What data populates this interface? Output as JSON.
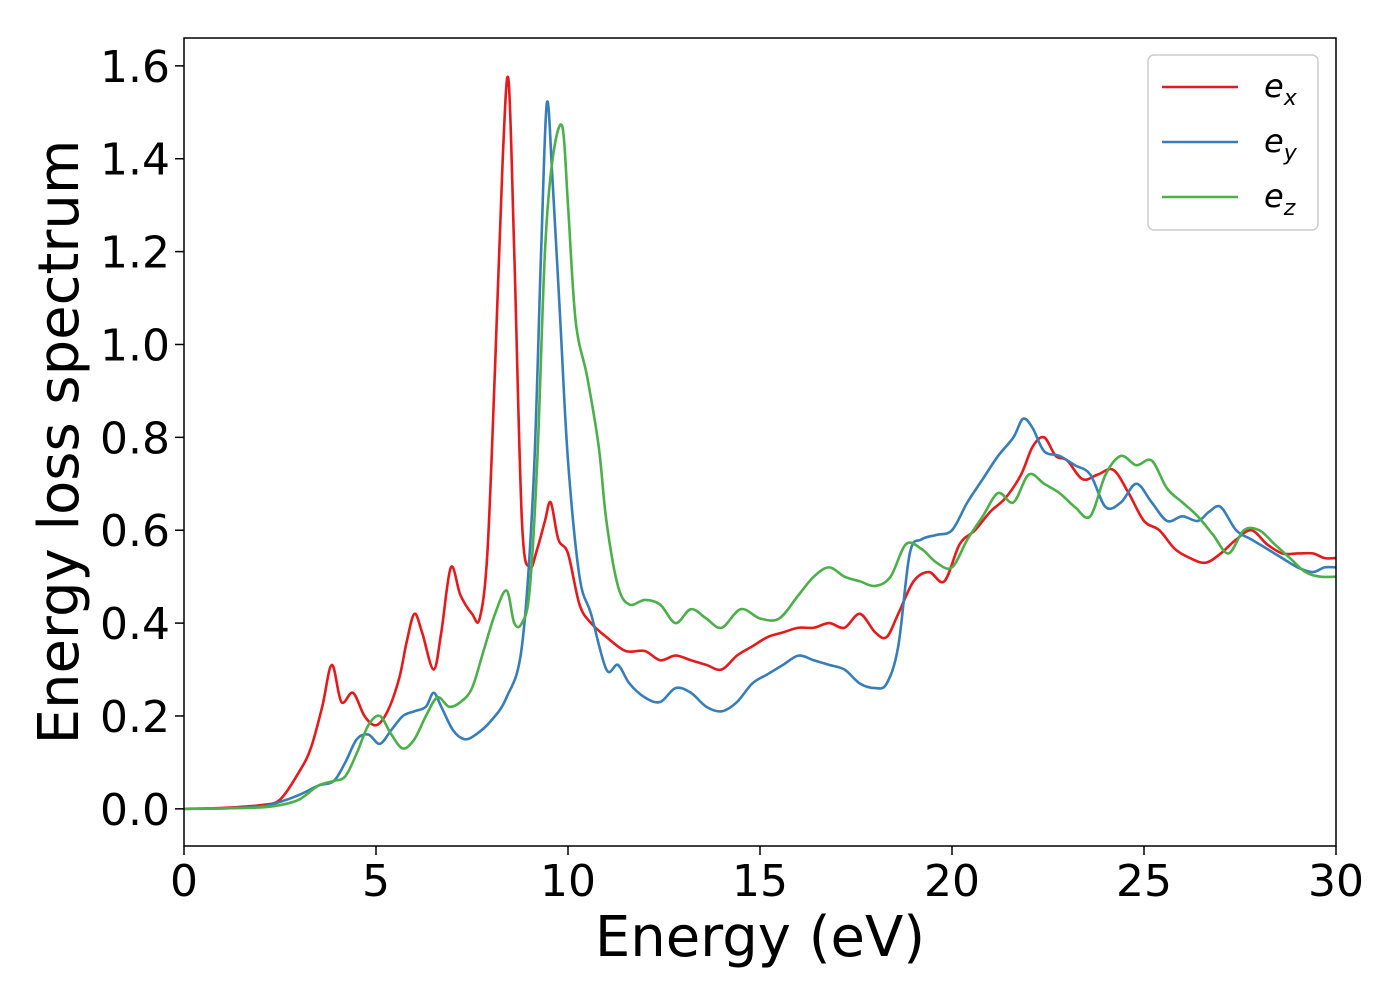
{
  "chart_data": {
    "type": "line",
    "title": "",
    "xlabel": "Energy (eV)",
    "ylabel": "Energy loss spectrum",
    "xlim": [
      0,
      30
    ],
    "ylim": [
      -0.08,
      1.66
    ],
    "xticks": [
      0,
      5,
      10,
      15,
      20,
      25,
      30
    ],
    "yticks": [
      0.0,
      0.2,
      0.4,
      0.6,
      0.8,
      1.0,
      1.2,
      1.4,
      1.6
    ],
    "grid": false,
    "legend_position": "top-right",
    "series": [
      {
        "name": "e_x",
        "label_base": "e",
        "label_sub": "x",
        "color": "#e41a1c",
        "x": [
          0,
          1,
          2,
          2.5,
          3,
          3.3,
          3.6,
          3.85,
          4.1,
          4.4,
          4.7,
          5.0,
          5.3,
          5.6,
          5.8,
          6.0,
          6.2,
          6.5,
          6.7,
          6.95,
          7.2,
          7.5,
          7.7,
          7.9,
          8.1,
          8.3,
          8.45,
          8.6,
          8.8,
          9.0,
          9.2,
          9.4,
          9.55,
          9.75,
          10.0,
          10.3,
          10.6,
          11.0,
          11.5,
          12.0,
          12.4,
          12.8,
          13.2,
          13.6,
          14.0,
          14.4,
          14.8,
          15.2,
          15.6,
          16.0,
          16.4,
          16.8,
          17.2,
          17.6,
          18.0,
          18.3,
          18.6,
          19.0,
          19.4,
          19.8,
          20.2,
          20.6,
          21.0,
          21.4,
          21.8,
          22.1,
          22.4,
          22.7,
          23.0,
          23.4,
          23.8,
          24.2,
          24.6,
          25.0,
          25.4,
          25.8,
          26.2,
          26.6,
          27.0,
          27.4,
          27.8,
          28.2,
          28.6,
          29.0,
          29.4,
          29.7,
          30.0
        ],
        "values": [
          0.0,
          0.002,
          0.008,
          0.02,
          0.08,
          0.13,
          0.22,
          0.31,
          0.23,
          0.25,
          0.2,
          0.18,
          0.21,
          0.28,
          0.36,
          0.42,
          0.38,
          0.3,
          0.38,
          0.52,
          0.46,
          0.42,
          0.41,
          0.55,
          0.95,
          1.4,
          1.57,
          1.2,
          0.62,
          0.52,
          0.56,
          0.62,
          0.66,
          0.58,
          0.55,
          0.44,
          0.4,
          0.37,
          0.34,
          0.34,
          0.32,
          0.33,
          0.32,
          0.31,
          0.3,
          0.33,
          0.35,
          0.37,
          0.38,
          0.39,
          0.39,
          0.4,
          0.39,
          0.42,
          0.38,
          0.37,
          0.42,
          0.49,
          0.51,
          0.49,
          0.57,
          0.6,
          0.64,
          0.67,
          0.72,
          0.78,
          0.8,
          0.76,
          0.75,
          0.71,
          0.72,
          0.73,
          0.68,
          0.62,
          0.6,
          0.56,
          0.54,
          0.53,
          0.55,
          0.58,
          0.6,
          0.57,
          0.55,
          0.55,
          0.55,
          0.54,
          0.54
        ]
      },
      {
        "name": "e_y",
        "label_base": "e",
        "label_sub": "y",
        "color": "#377eb8",
        "x": [
          0,
          1,
          2,
          2.5,
          3,
          3.5,
          3.9,
          4.2,
          4.5,
          4.8,
          5.1,
          5.4,
          5.7,
          6.0,
          6.3,
          6.5,
          6.7,
          7.0,
          7.3,
          7.6,
          8.0,
          8.4,
          8.8,
          9.1,
          9.3,
          9.45,
          9.6,
          9.8,
          10.0,
          10.3,
          10.6,
          11.0,
          11.3,
          11.6,
          12.0,
          12.4,
          12.8,
          13.2,
          13.6,
          14.0,
          14.4,
          14.8,
          15.2,
          15.6,
          16.0,
          16.4,
          16.8,
          17.2,
          17.6,
          18.0,
          18.3,
          18.6,
          18.9,
          19.2,
          19.6,
          20.0,
          20.4,
          20.8,
          21.2,
          21.6,
          21.85,
          22.1,
          22.4,
          22.8,
          23.2,
          23.6,
          24.0,
          24.4,
          24.8,
          25.2,
          25.6,
          26.0,
          26.4,
          26.7,
          27.0,
          27.4,
          27.8,
          28.2,
          28.6,
          29.0,
          29.4,
          29.7,
          30.0
        ],
        "values": [
          0.0,
          0.001,
          0.005,
          0.015,
          0.03,
          0.05,
          0.06,
          0.1,
          0.15,
          0.16,
          0.14,
          0.17,
          0.2,
          0.21,
          0.22,
          0.25,
          0.22,
          0.17,
          0.15,
          0.16,
          0.19,
          0.24,
          0.35,
          0.7,
          1.2,
          1.52,
          1.35,
          1.05,
          0.75,
          0.5,
          0.42,
          0.3,
          0.31,
          0.27,
          0.24,
          0.23,
          0.26,
          0.25,
          0.22,
          0.21,
          0.23,
          0.27,
          0.29,
          0.31,
          0.33,
          0.32,
          0.31,
          0.3,
          0.27,
          0.26,
          0.27,
          0.35,
          0.55,
          0.58,
          0.59,
          0.6,
          0.66,
          0.71,
          0.76,
          0.8,
          0.84,
          0.82,
          0.77,
          0.76,
          0.74,
          0.72,
          0.65,
          0.66,
          0.7,
          0.66,
          0.62,
          0.63,
          0.62,
          0.64,
          0.65,
          0.6,
          0.58,
          0.56,
          0.54,
          0.52,
          0.51,
          0.52,
          0.52
        ]
      },
      {
        "name": "e_z",
        "label_base": "e",
        "label_sub": "z",
        "color": "#4daf4a",
        "x": [
          0,
          1,
          2,
          2.5,
          3,
          3.5,
          3.9,
          4.2,
          4.5,
          4.8,
          5.1,
          5.4,
          5.7,
          6.0,
          6.3,
          6.6,
          6.9,
          7.2,
          7.5,
          7.8,
          8.1,
          8.4,
          8.6,
          8.8,
          9.0,
          9.2,
          9.4,
          9.6,
          9.85,
          10.0,
          10.2,
          10.5,
          10.8,
          11.0,
          11.3,
          11.6,
          12.0,
          12.4,
          12.8,
          13.2,
          13.6,
          14.0,
          14.5,
          15.0,
          15.5,
          16.0,
          16.4,
          16.8,
          17.2,
          17.6,
          18.0,
          18.4,
          18.8,
          19.2,
          19.6,
          20.0,
          20.4,
          20.8,
          21.2,
          21.6,
          22.0,
          22.4,
          22.8,
          23.2,
          23.6,
          24.0,
          24.4,
          24.8,
          25.2,
          25.6,
          26.0,
          26.4,
          26.8,
          27.2,
          27.6,
          28.0,
          28.4,
          28.8,
          29.2,
          29.6,
          30.0
        ],
        "values": [
          0.0,
          0.001,
          0.003,
          0.008,
          0.02,
          0.05,
          0.06,
          0.07,
          0.12,
          0.18,
          0.2,
          0.16,
          0.13,
          0.15,
          0.2,
          0.24,
          0.22,
          0.23,
          0.26,
          0.34,
          0.42,
          0.47,
          0.4,
          0.4,
          0.47,
          0.75,
          1.2,
          1.4,
          1.47,
          1.3,
          1.05,
          0.93,
          0.78,
          0.62,
          0.48,
          0.44,
          0.45,
          0.44,
          0.4,
          0.43,
          0.41,
          0.39,
          0.43,
          0.41,
          0.41,
          0.46,
          0.5,
          0.52,
          0.5,
          0.49,
          0.48,
          0.5,
          0.57,
          0.56,
          0.53,
          0.52,
          0.58,
          0.63,
          0.68,
          0.66,
          0.72,
          0.7,
          0.68,
          0.65,
          0.63,
          0.72,
          0.76,
          0.74,
          0.75,
          0.69,
          0.66,
          0.63,
          0.59,
          0.55,
          0.6,
          0.6,
          0.57,
          0.54,
          0.51,
          0.5,
          0.5
        ]
      }
    ]
  }
}
